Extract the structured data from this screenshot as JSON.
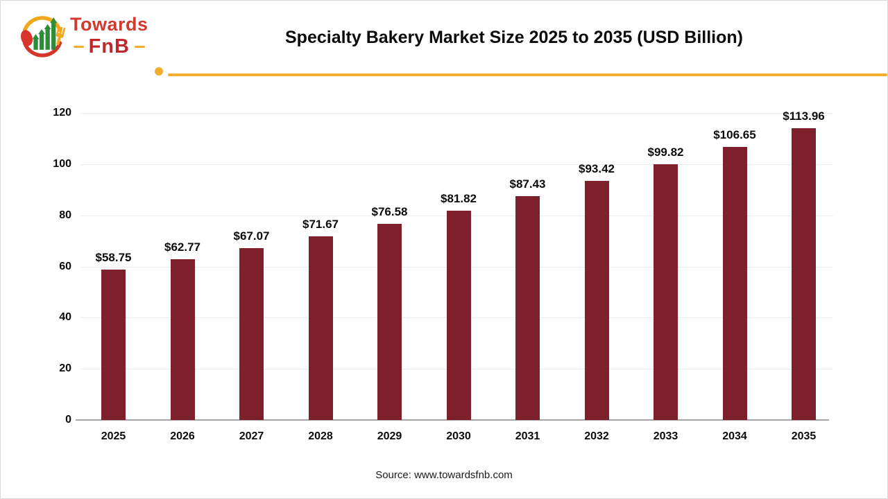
{
  "logo": {
    "brand_top": "Towards",
    "brand_bottom": "FnB"
  },
  "header": {
    "title": "Specialty Bakery Market Size 2025 to 2035 (USD Billion)"
  },
  "footer": {
    "source": "Source: www.towardsfnb.com"
  },
  "colors": {
    "bar": "#7E1F2C",
    "accent_yellow": "#F2AC2E",
    "logo_red": "#D23A30",
    "logo_dark_red": "#C0272D",
    "logo_green": "#2E8B3A",
    "gridline": "#ECECEC",
    "axis_line": "#A6A6A6",
    "text": "#0B0B0B"
  },
  "chart_data": {
    "type": "bar",
    "title": "Specialty Bakery Market Size 2025 to 2035 (USD Billion)",
    "categories": [
      "2025",
      "2026",
      "2027",
      "2028",
      "2029",
      "2030",
      "2031",
      "2032",
      "2033",
      "2034",
      "2035"
    ],
    "values": [
      58.75,
      62.77,
      67.07,
      71.67,
      76.58,
      81.82,
      87.43,
      93.42,
      99.82,
      106.65,
      113.96
    ],
    "data_labels": [
      "$58.75",
      "$62.77",
      "$67.07",
      "$71.67",
      "$76.58",
      "$81.82",
      "$87.43",
      "$93.42",
      "$99.82",
      "$106.65",
      "$113.96"
    ],
    "xlabel": "",
    "ylabel": "",
    "ylim": [
      0,
      120
    ],
    "yticks": [
      0,
      20,
      40,
      60,
      80,
      100,
      120
    ],
    "grid": "horizontal-only",
    "legend": "none",
    "bar_color": "#7E1F2C",
    "value_prefix": "$"
  }
}
